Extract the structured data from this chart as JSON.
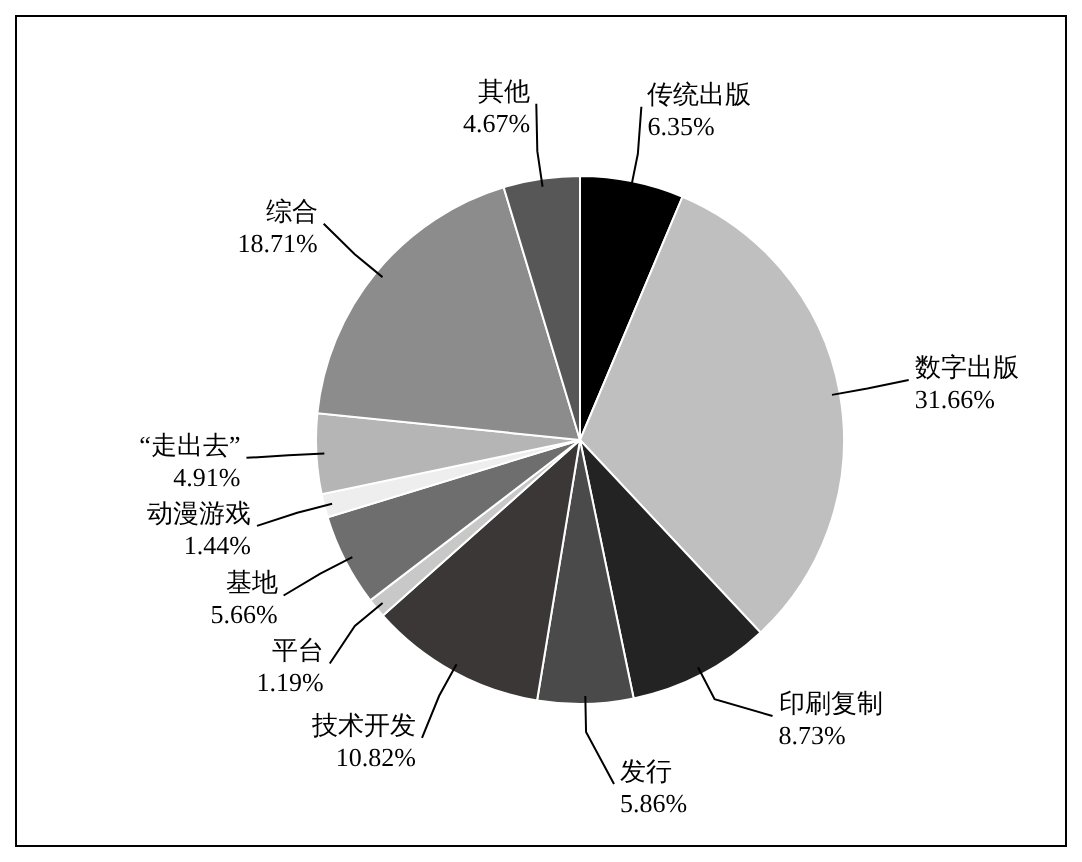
{
  "chart_data": {
    "type": "pie",
    "categories": [
      "传统出版",
      "数字出版",
      "印刷复制",
      "发行",
      "技术开发",
      "平台",
      "基地",
      "动漫游戏",
      "“走出去”",
      "综合",
      "其他"
    ],
    "values": [
      6.35,
      31.66,
      8.73,
      5.86,
      10.82,
      1.19,
      5.66,
      1.44,
      4.91,
      18.71,
      4.67
    ],
    "value_labels": [
      "6.35%",
      "31.66%",
      "8.73%",
      "5.86%",
      "10.82%",
      "1.19%",
      "5.66%",
      "1.44%",
      "4.91%",
      "18.71%",
      "4.67%"
    ],
    "colors": [
      "#000000",
      "#bfbfbf",
      "#232323",
      "#4a4a4a",
      "#3b3737",
      "#c8c8c8",
      "#6e6e6e",
      "#eeeeee",
      "#b5b5b5",
      "#8c8c8c",
      "#575757"
    ]
  }
}
